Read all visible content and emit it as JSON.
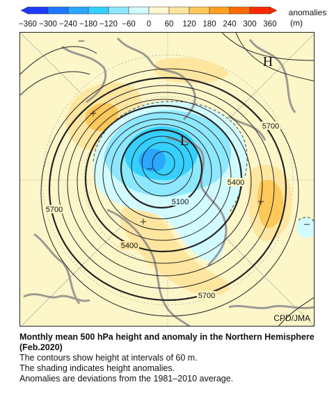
{
  "colorbar": {
    "title_line1": "anomalies",
    "title_line2": "(m)",
    "ticks": [
      "−360",
      "−300",
      "−240",
      "−180",
      "−120",
      "−60",
      "0",
      "60",
      "120",
      "180",
      "240",
      "300",
      "360"
    ],
    "colors": [
      "#1e3cff",
      "#1e78ff",
      "#2aa7ff",
      "#35d0ff",
      "#8de8ff",
      "#d2fbff",
      "#fff8d0",
      "#ffe6a0",
      "#ffc85a",
      "#ffa020",
      "#ff6a00",
      "#ff2a00"
    ]
  },
  "map": {
    "background_color": "#fdf6c9",
    "contour_labels": [
      "5700",
      "5400",
      "5100",
      "5700",
      "5400",
      "5700"
    ],
    "markers": [
      "H",
      "L",
      "+",
      "+",
      "+",
      "−",
      "−",
      "−"
    ],
    "credit": "CPD/JMA"
  },
  "caption": {
    "title": "Monthly mean 500 hPa height and anomaly in the Northern Hemisphere (Feb.2020)",
    "line1": "The contours show height at intervals of 60 m.",
    "line2": "The shading indicates height anomalies.",
    "line3": "Anomalies are deviations from the 1981–2010 average."
  }
}
